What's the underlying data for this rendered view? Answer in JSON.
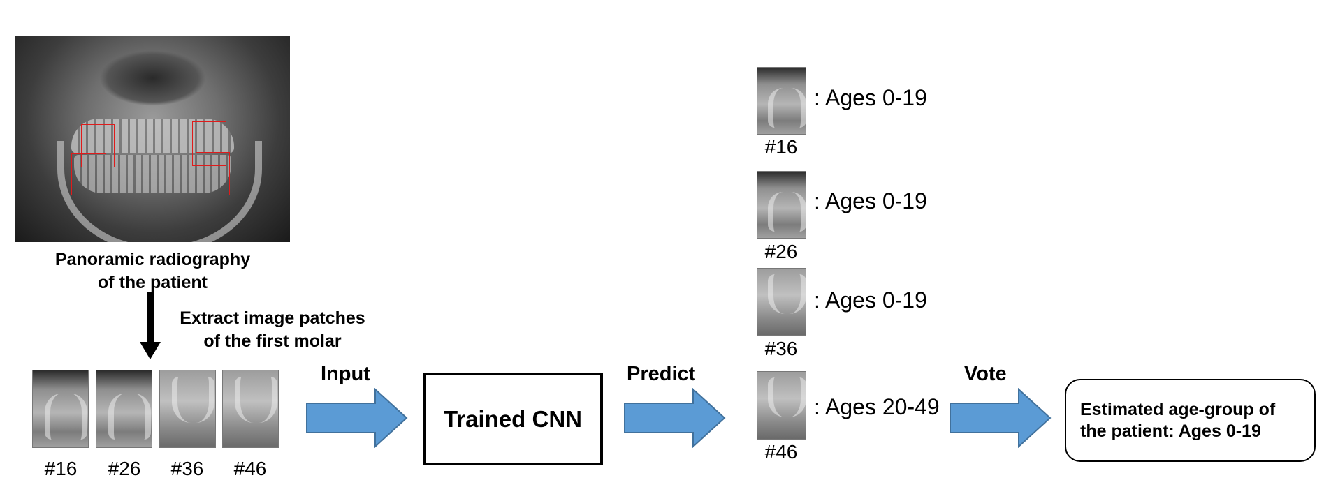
{
  "radiograph": {
    "caption_line1": "Panoramic radiography",
    "caption_line2": "of the patient"
  },
  "extract": {
    "label_line1": "Extract image patches",
    "label_line2": "of the first molar"
  },
  "input_patches": [
    "#16",
    "#26",
    "#36",
    "#46"
  ],
  "steps": {
    "input": "Input",
    "predict": "Predict",
    "vote": "Vote"
  },
  "model": {
    "label": "Trained CNN"
  },
  "predictions": [
    {
      "tooth": "#16",
      "result": ": Ages 0-19"
    },
    {
      "tooth": "#26",
      "result": ": Ages 0-19"
    },
    {
      "tooth": "#36",
      "result": ": Ages 0-19"
    },
    {
      "tooth": "#46",
      "result": ": Ages 20-49"
    }
  ],
  "result": {
    "line1": "Estimated age-group of",
    "line2": "the patient: Ages 0-19"
  },
  "colors": {
    "arrow_fill": "#5b9bd5",
    "arrow_stroke": "#41719c",
    "box_outline": "#e01b1b"
  }
}
